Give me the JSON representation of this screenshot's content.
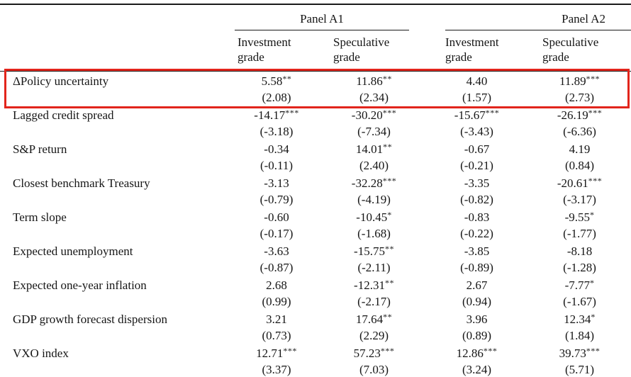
{
  "table": {
    "panels": [
      {
        "label": "Panel A1"
      },
      {
        "label": "Panel A2"
      }
    ],
    "column_headers": [
      "Investment grade",
      "Speculative grade",
      "Investment grade",
      "Speculative grade"
    ],
    "rows": [
      {
        "label": "ΔPolicy uncertainty",
        "highlighted": true,
        "coefs": [
          "5.58**",
          "11.86**",
          "4.40",
          "11.89***"
        ],
        "tstats": [
          "(2.08)",
          "(2.34)",
          "(1.57)",
          "(2.73)"
        ]
      },
      {
        "label": "Lagged credit spread",
        "highlighted": false,
        "coefs": [
          "-14.17***",
          "-30.20***",
          "-15.67***",
          "-26.19***"
        ],
        "tstats": [
          "(-3.18)",
          "(-7.34)",
          "(-3.43)",
          "(-6.36)"
        ]
      },
      {
        "label": "S&P return",
        "highlighted": false,
        "coefs": [
          "-0.34",
          "14.01**",
          "-0.67",
          "4.19"
        ],
        "tstats": [
          "(-0.11)",
          "(2.40)",
          "(-0.21)",
          "(0.84)"
        ]
      },
      {
        "label": "Closest benchmark Treasury",
        "highlighted": false,
        "coefs": [
          "-3.13",
          "-32.28***",
          "-3.35",
          "-20.61***"
        ],
        "tstats": [
          "(-0.79)",
          "(-4.19)",
          "(-0.82)",
          "(-3.17)"
        ]
      },
      {
        "label": "Term slope",
        "highlighted": false,
        "coefs": [
          "-0.60",
          "-10.45*",
          "-0.83",
          "-9.55*"
        ],
        "tstats": [
          "(-0.17)",
          "(-1.68)",
          "(-0.22)",
          "(-1.77)"
        ]
      },
      {
        "label": "Expected unemployment",
        "highlighted": false,
        "coefs": [
          "-3.63",
          "-15.75**",
          "-3.85",
          "-8.18"
        ],
        "tstats": [
          "(-0.87)",
          "(-2.11)",
          "(-0.89)",
          "(-1.28)"
        ]
      },
      {
        "label": "Expected one-year inflation",
        "highlighted": false,
        "coefs": [
          "2.68",
          "-12.31**",
          "2.67",
          "-7.77*"
        ],
        "tstats": [
          "(0.99)",
          "(-2.17)",
          "(0.94)",
          "(-1.67)"
        ]
      },
      {
        "label": "GDP growth forecast dispersion",
        "highlighted": false,
        "coefs": [
          "3.21",
          "17.64**",
          "3.96",
          "12.34*"
        ],
        "tstats": [
          "(0.73)",
          "(2.29)",
          "(0.89)",
          "(1.84)"
        ]
      },
      {
        "label": "VXO index",
        "highlighted": false,
        "coefs": [
          "12.71***",
          "57.23***",
          "12.86***",
          "39.73***"
        ],
        "tstats": [
          "(3.37)",
          "(7.03)",
          "(3.24)",
          "(5.71)"
        ]
      }
    ],
    "highlight_color": "#e2251c",
    "rule_color": "#1a1a1a"
  }
}
